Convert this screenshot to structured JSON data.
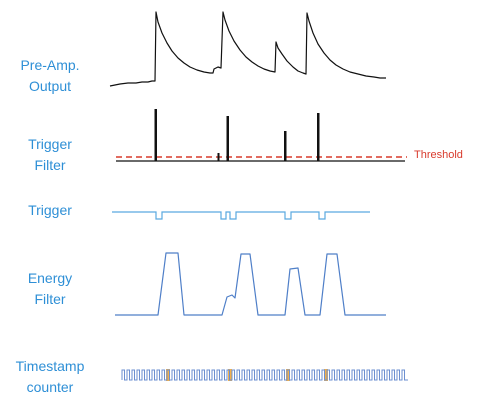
{
  "labels": {
    "preamp": [
      "Pre-Amp.",
      "Output"
    ],
    "trigger_filter": [
      "Trigger",
      "Filter"
    ],
    "trigger": [
      "Trigger"
    ],
    "energy_filter": [
      "Energy",
      "Filter"
    ],
    "timestamp": [
      "Timestamp",
      "counter"
    ],
    "threshold": "Threshold"
  },
  "colors": {
    "label": "#2e8fd6",
    "signal_black": "#111111",
    "threshold": "#d83a2c",
    "trigger_line": "#5aa9e0",
    "energy_line": "#4f7fc8",
    "clock_line": "#6b8fd0",
    "timestamp_mark": "#f2b04c"
  }
}
